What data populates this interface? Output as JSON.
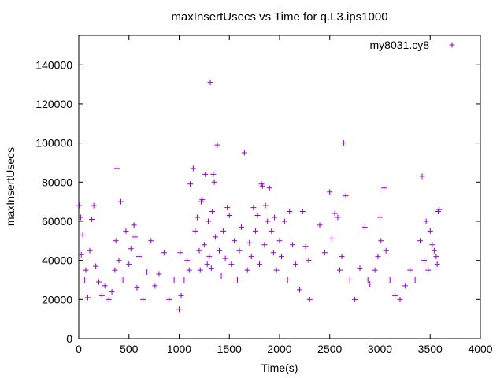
{
  "chart_data": {
    "type": "scatter",
    "title": "maxInsertUsecs vs Time for q.L3.ips1000",
    "xlabel": "Time(s)",
    "ylabel": "maxInsertUsecs",
    "xlim": [
      0,
      4000
    ],
    "ylim": [
      0,
      155000
    ],
    "x_ticks": [
      0,
      500,
      1000,
      1500,
      2000,
      2500,
      3000,
      3500,
      4000
    ],
    "y_ticks": [
      0,
      20000,
      40000,
      60000,
      80000,
      100000,
      120000,
      140000
    ],
    "x_tick_labels": [
      "0",
      "500",
      "1000",
      "1500",
      "2000",
      "2500",
      "3000",
      "3500",
      "4000"
    ],
    "y_tick_labels": [
      "0",
      "20000",
      "40000",
      "60000",
      "80000",
      "100000",
      "120000",
      "140000"
    ],
    "grid": false,
    "legend_position": "top-right",
    "marker": "plus",
    "series": [
      {
        "name": "my8031.cy8",
        "color": "#9400d3",
        "points": [
          [
            5,
            68000
          ],
          [
            20,
            62000
          ],
          [
            25,
            43000
          ],
          [
            40,
            53000
          ],
          [
            60,
            30000
          ],
          [
            70,
            35000
          ],
          [
            90,
            21000
          ],
          [
            110,
            45000
          ],
          [
            130,
            61000
          ],
          [
            150,
            68000
          ],
          [
            170,
            37000
          ],
          [
            200,
            29000
          ],
          [
            230,
            22000
          ],
          [
            260,
            27000
          ],
          [
            300,
            20000
          ],
          [
            330,
            24000
          ],
          [
            360,
            35000
          ],
          [
            370,
            50000
          ],
          [
            380,
            87000
          ],
          [
            400,
            40000
          ],
          [
            420,
            70000
          ],
          [
            440,
            30000
          ],
          [
            470,
            55000
          ],
          [
            500,
            38000
          ],
          [
            520,
            46000
          ],
          [
            550,
            58000
          ],
          [
            560,
            52000
          ],
          [
            580,
            26000
          ],
          [
            600,
            42000
          ],
          [
            640,
            20000
          ],
          [
            680,
            34000
          ],
          [
            720,
            50000
          ],
          [
            760,
            27000
          ],
          [
            800,
            33000
          ],
          [
            850,
            44000
          ],
          [
            900,
            20000
          ],
          [
            950,
            30000
          ],
          [
            1000,
            15000
          ],
          [
            1010,
            44000
          ],
          [
            1020,
            22000
          ],
          [
            1050,
            30000
          ],
          [
            1080,
            40000
          ],
          [
            1100,
            35000
          ],
          [
            1110,
            79000
          ],
          [
            1140,
            87000
          ],
          [
            1160,
            55000
          ],
          [
            1180,
            62000
          ],
          [
            1200,
            45000
          ],
          [
            1210,
            35000
          ],
          [
            1220,
            70000
          ],
          [
            1230,
            71000
          ],
          [
            1250,
            48000
          ],
          [
            1260,
            84000
          ],
          [
            1280,
            38000
          ],
          [
            1290,
            60000
          ],
          [
            1300,
            42000
          ],
          [
            1310,
            131000
          ],
          [
            1320,
            36000
          ],
          [
            1330,
            65000
          ],
          [
            1340,
            84000
          ],
          [
            1350,
            80000
          ],
          [
            1360,
            52000
          ],
          [
            1380,
            99000
          ],
          [
            1400,
            45000
          ],
          [
            1420,
            32000
          ],
          [
            1440,
            55000
          ],
          [
            1460,
            41000
          ],
          [
            1480,
            67000
          ],
          [
            1500,
            63000
          ],
          [
            1520,
            38000
          ],
          [
            1550,
            50000
          ],
          [
            1580,
            30000
          ],
          [
            1600,
            45000
          ],
          [
            1620,
            57000
          ],
          [
            1650,
            95000
          ],
          [
            1680,
            35000
          ],
          [
            1700,
            49000
          ],
          [
            1720,
            42000
          ],
          [
            1740,
            67000
          ],
          [
            1760,
            55000
          ],
          [
            1780,
            63000
          ],
          [
            1800,
            38000
          ],
          [
            1820,
            79000
          ],
          [
            1830,
            78000
          ],
          [
            1850,
            48000
          ],
          [
            1860,
            68000
          ],
          [
            1880,
            60000
          ],
          [
            1900,
            77000
          ],
          [
            1920,
            55000
          ],
          [
            1940,
            44000
          ],
          [
            1950,
            62000
          ],
          [
            1970,
            35000
          ],
          [
            2000,
            50000
          ],
          [
            2020,
            42000
          ],
          [
            2050,
            60000
          ],
          [
            2080,
            30000
          ],
          [
            2100,
            65000
          ],
          [
            2130,
            48000
          ],
          [
            2160,
            38000
          ],
          [
            2200,
            25000
          ],
          [
            2230,
            65000
          ],
          [
            2260,
            47000
          ],
          [
            2290,
            40000
          ],
          [
            2300,
            20000
          ],
          [
            2400,
            58000
          ],
          [
            2450,
            44000
          ],
          [
            2500,
            75000
          ],
          [
            2520,
            51000
          ],
          [
            2550,
            64000
          ],
          [
            2580,
            62000
          ],
          [
            2600,
            35000
          ],
          [
            2620,
            42000
          ],
          [
            2640,
            100000
          ],
          [
            2660,
            73000
          ],
          [
            2700,
            30000
          ],
          [
            2750,
            20000
          ],
          [
            2800,
            36000
          ],
          [
            2850,
            57000
          ],
          [
            2880,
            30000
          ],
          [
            2900,
            28000
          ],
          [
            2950,
            35000
          ],
          [
            2980,
            42000
          ],
          [
            3000,
            62000
          ],
          [
            3010,
            50000
          ],
          [
            3040,
            77000
          ],
          [
            3060,
            45000
          ],
          [
            3100,
            30000
          ],
          [
            3150,
            22000
          ],
          [
            3200,
            20000
          ],
          [
            3250,
            27000
          ],
          [
            3300,
            35000
          ],
          [
            3350,
            30000
          ],
          [
            3400,
            50000
          ],
          [
            3420,
            83000
          ],
          [
            3440,
            40000
          ],
          [
            3460,
            60000
          ],
          [
            3480,
            35000
          ],
          [
            3500,
            55000
          ],
          [
            3520,
            48000
          ],
          [
            3540,
            45000
          ],
          [
            3560,
            42000
          ],
          [
            3570,
            38000
          ],
          [
            3580,
            65000
          ],
          [
            3590,
            66000
          ]
        ]
      }
    ]
  }
}
